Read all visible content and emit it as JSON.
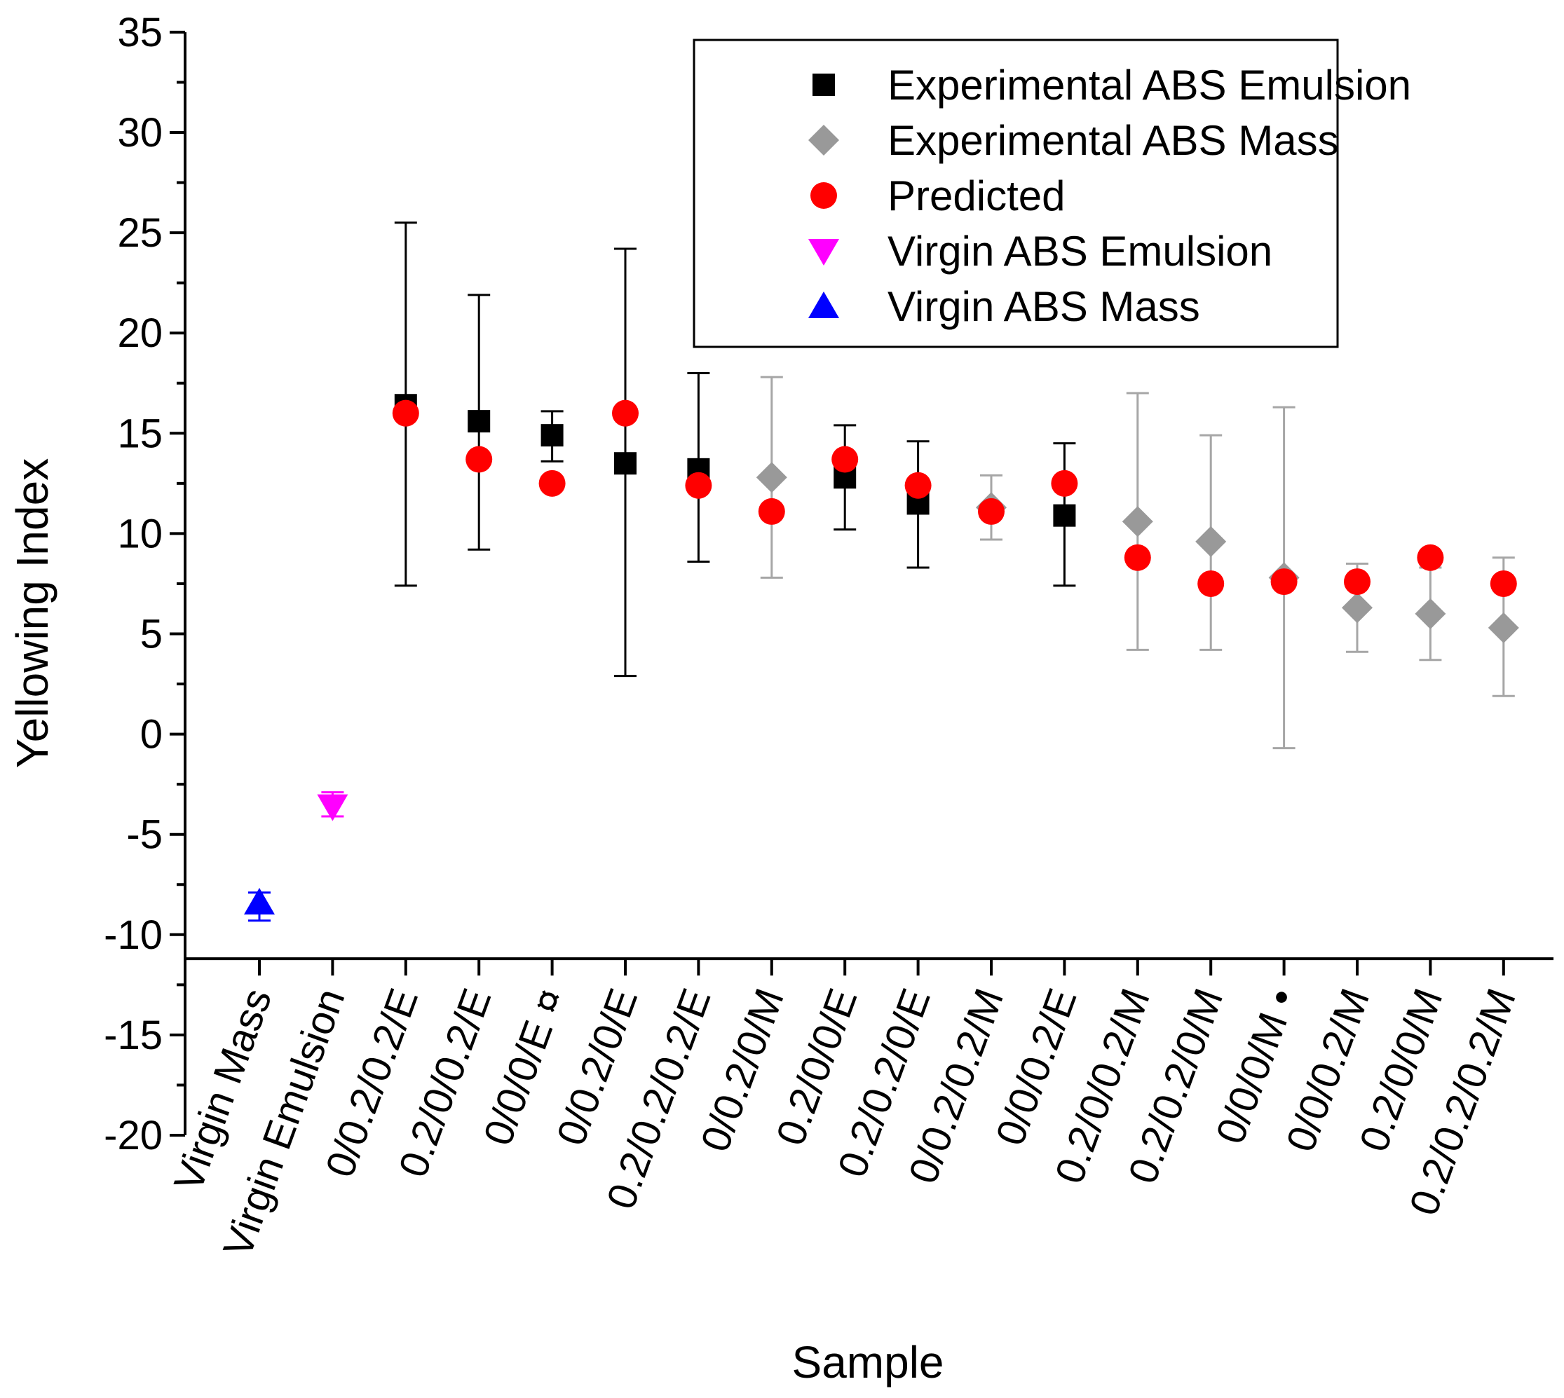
{
  "chart_data": {
    "type": "scatter",
    "xlabel": "Sample",
    "ylabel": "Yellowing Index",
    "ylim": [
      -20,
      35
    ],
    "y_ticks": [
      -20,
      -15,
      -10,
      -5,
      0,
      5,
      10,
      15,
      20,
      25,
      30,
      35
    ],
    "x_axis_at_y": -11.2,
    "grid": false,
    "legend_position": "top-right",
    "categories": [
      "Virgin Mass",
      "Virgin Emulsion",
      "0/0.2/0.2/E",
      "0.2/0/0.2/E",
      "0/0/0/E ¤",
      "0/0.2/0/E",
      "0.2/0.2/0.2/E",
      "0/0.2/0/M",
      "0.2/0/0/E",
      "0.2/0.2/0/E",
      "0/0.2/0.2/M",
      "0/0/0.2/E",
      "0.2/0/0.2/M",
      "0.2/0.2/0/M",
      "0/0/0/M •",
      "0/0/0.2/M",
      "0.2/0/0/M",
      "0.2/0.2/0.2/M"
    ],
    "series": [
      {
        "name": "Experimental ABS Emulsion",
        "marker": "square",
        "color": "#000000",
        "errorbar_color": "#000000",
        "points": [
          {
            "x": "0/0.2/0.2/E",
            "y": 16.4,
            "err_low": 7.4,
            "err_high": 25.5
          },
          {
            "x": "0.2/0/0.2/E",
            "y": 15.6,
            "err_low": 9.2,
            "err_high": 21.9
          },
          {
            "x": "0/0/0/E ¤",
            "y": 14.9,
            "err_low": 13.6,
            "err_high": 16.1
          },
          {
            "x": "0/0.2/0/E",
            "y": 13.5,
            "err_low": 2.9,
            "err_high": 24.2
          },
          {
            "x": "0.2/0.2/0.2/E",
            "y": 13.2,
            "err_low": 8.6,
            "err_high": 18.0
          },
          {
            "x": "0.2/0/0/E",
            "y": 12.8,
            "err_low": 10.2,
            "err_high": 15.4
          },
          {
            "x": "0.2/0.2/0/E",
            "y": 11.5,
            "err_low": 8.3,
            "err_high": 14.6
          },
          {
            "x": "0/0/0.2/E",
            "y": 10.9,
            "err_low": 7.4,
            "err_high": 14.5
          }
        ]
      },
      {
        "name": "Experimental ABS Mass",
        "marker": "diamond",
        "color": "#999999",
        "errorbar_color": "#a6a6a6",
        "points": [
          {
            "x": "0/0.2/0/M",
            "y": 12.8,
            "err_low": 7.8,
            "err_high": 17.8
          },
          {
            "x": "0/0.2/0.2/M",
            "y": 11.3,
            "err_low": 9.7,
            "err_high": 12.9
          },
          {
            "x": "0.2/0/0.2/M",
            "y": 10.6,
            "err_low": 4.2,
            "err_high": 17.0
          },
          {
            "x": "0.2/0.2/0/M",
            "y": 9.6,
            "err_low": 4.2,
            "err_high": 14.9
          },
          {
            "x": "0/0/0/M •",
            "y": 7.8,
            "err_low": -0.7,
            "err_high": 16.3
          },
          {
            "x": "0/0/0.2/M",
            "y": 6.3,
            "err_low": 4.1,
            "err_high": 8.5
          },
          {
            "x": "0.2/0/0/M",
            "y": 6.0,
            "err_low": 3.7,
            "err_high": 8.3
          },
          {
            "x": "0.2/0.2/0.2/M",
            "y": 5.3,
            "err_low": 1.9,
            "err_high": 8.8
          }
        ]
      },
      {
        "name": "Predicted",
        "marker": "circle",
        "color": "#ff0000",
        "points": [
          {
            "x": "0/0.2/0.2/E",
            "y": 16.0
          },
          {
            "x": "0.2/0/0.2/E",
            "y": 13.7
          },
          {
            "x": "0/0/0/E ¤",
            "y": 12.5
          },
          {
            "x": "0/0.2/0/E",
            "y": 16.0
          },
          {
            "x": "0.2/0.2/0.2/E",
            "y": 12.4
          },
          {
            "x": "0/0.2/0/M",
            "y": 11.1
          },
          {
            "x": "0.2/0/0/E",
            "y": 13.7
          },
          {
            "x": "0.2/0.2/0/E",
            "y": 12.4
          },
          {
            "x": "0/0.2/0.2/M",
            "y": 11.1
          },
          {
            "x": "0/0/0.2/E",
            "y": 12.5
          },
          {
            "x": "0.2/0/0.2/M",
            "y": 8.8
          },
          {
            "x": "0.2/0.2/0/M",
            "y": 7.5
          },
          {
            "x": "0/0/0/M •",
            "y": 7.6
          },
          {
            "x": "0/0/0.2/M",
            "y": 7.6
          },
          {
            "x": "0.2/0/0/M",
            "y": 8.8
          },
          {
            "x": "0.2/0.2/0.2/M",
            "y": 7.5
          }
        ]
      },
      {
        "name": "Virgin ABS Emulsion",
        "marker": "triangle-down",
        "color": "#ff00ff",
        "errorbar_color": "#ff00ff",
        "points": [
          {
            "x": "Virgin Emulsion",
            "y": -3.6,
            "err_low": -4.1,
            "err_high": -2.9
          }
        ]
      },
      {
        "name": "Virgin ABS Mass",
        "marker": "triangle-up",
        "color": "#0000ff",
        "errorbar_color": "#0000ff",
        "points": [
          {
            "x": "Virgin Mass",
            "y": -8.4,
            "err_low": -9.3,
            "err_high": -7.9
          }
        ]
      }
    ]
  }
}
